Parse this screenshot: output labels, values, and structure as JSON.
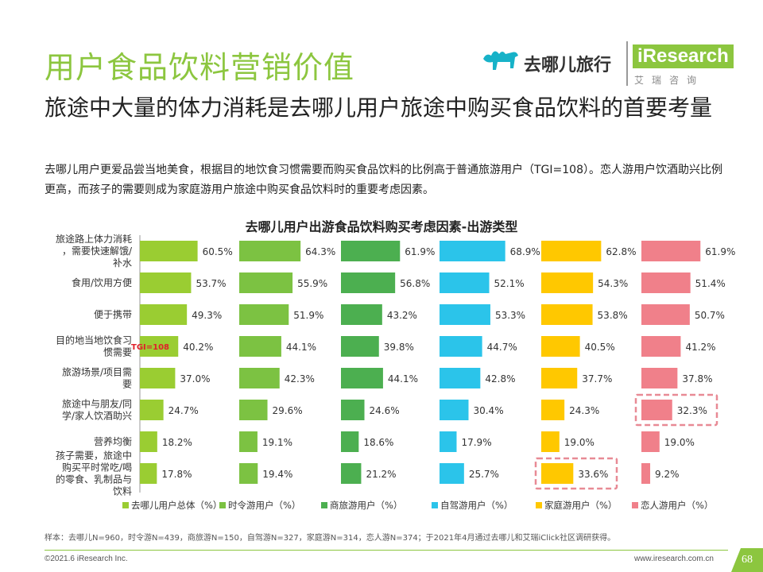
{
  "header": {
    "title": "用户食品饮料营销价值",
    "subtitle": "旅途中大量的体力消耗是去哪儿用户旅途中购买食品饮料的首要考量",
    "description": "去哪儿用户更爱品尝当地美食，根据目的地饮食习惯需要而购买食品饮料的比例高于普通旅游用户（TGI=108）。恋人游用户饮酒助兴比例更高，而孩子的需要则成为家庭游用户旅途中购买食品饮料时的重要考虑因素。",
    "qunar_logo_text": "去哪儿旅行",
    "ir_logo_text": "iResearch",
    "ir_logo_cn": "艾瑞咨询"
  },
  "footer": {
    "footnote": "样本：去哪儿N=960，时令游N=439，商旅游N=150，自驾游N=327，家庭游N=314，恋人游N=374；于2021年4月通过去哪儿和艾瑞iClick社区调研获得。",
    "copyright": "©2021.6 iResearch Inc.",
    "website": "www.iresearch.com.cn",
    "page_number": "68"
  },
  "chart_data": {
    "type": "bar",
    "title": "去哪儿用户出游食品饮料购买考虑因素-出游类型",
    "categories": [
      "旅途路上体力消耗，需要快速解饿/补水",
      "食用/饮用方便",
      "便于携带",
      "目的地当地饮食习惯需要",
      "旅游场景/项目需要",
      "旅途中与朋友/同学/家人饮酒助兴",
      "营养均衡",
      "孩子需要，旅途中购买平时常吃/喝的零食、乳制品与饮料"
    ],
    "series": [
      {
        "name": "去哪儿用户总体（%）",
        "color": "#9acd32",
        "values": [
          60.5,
          53.7,
          49.3,
          40.2,
          37.0,
          24.7,
          18.2,
          17.8
        ],
        "labels": [
          "60.5%",
          "53.7%",
          "49.3%",
          "40.2%",
          "37.0%",
          "24.7%",
          "18.2%",
          "17.8%"
        ]
      },
      {
        "name": "时令游用户（%）",
        "color": "#7cc242",
        "values": [
          64.3,
          55.9,
          51.9,
          44.1,
          42.3,
          29.6,
          19.1,
          19.4
        ],
        "labels": [
          "64.3%",
          "55.9%",
          "51.9%",
          "44.1%",
          "42.3%",
          "29.6%",
          "19.1%",
          "19.4%"
        ]
      },
      {
        "name": "商旅游用户（%）",
        "color": "#4caf50",
        "values": [
          61.9,
          56.8,
          43.2,
          39.8,
          44.1,
          24.6,
          18.6,
          21.2
        ],
        "labels": [
          "61.9%",
          "56.8%",
          "43.2%",
          "39.8%",
          "44.1%",
          "24.6%",
          "18.6%",
          "21.2%"
        ]
      },
      {
        "name": "自驾游用户（%）",
        "color": "#2bc4ea",
        "values": [
          68.9,
          52.1,
          53.3,
          44.7,
          42.8,
          30.4,
          17.9,
          25.7
        ],
        "labels": [
          "68.9%",
          "52.1%",
          "53.3%",
          "44.7%",
          "42.8%",
          "30.4%",
          "17.9%",
          "25.7%"
        ]
      },
      {
        "name": "家庭游用户（%）",
        "color": "#ffc800",
        "values": [
          62.8,
          54.3,
          53.8,
          40.5,
          37.7,
          24.3,
          19.0,
          33.6
        ],
        "labels": [
          "62.8%",
          "54.3%",
          "53.8%",
          "40.5%",
          "37.7%",
          "24.3%",
          "19.0%",
          "33.6%"
        ]
      },
      {
        "name": "恋人游用户（%）",
        "color": "#f0808a",
        "values": [
          61.9,
          51.4,
          50.7,
          41.2,
          37.8,
          32.3,
          19.0,
          9.2
        ],
        "labels": [
          "61.9%",
          "51.4%",
          "50.7%",
          "41.2%",
          "37.8%",
          "32.3%",
          "19.0%",
          "9.2%"
        ]
      }
    ],
    "annotations": [
      {
        "text": "TGI=108",
        "series": 0,
        "category": 3,
        "color": "#e0202a"
      }
    ],
    "highlights": [
      {
        "series": 5,
        "category": 5,
        "style": "dashed",
        "color": "#e88a95"
      },
      {
        "series": 4,
        "category": 7,
        "style": "dashed",
        "color": "#e88a95"
      }
    ],
    "legend_position": "bottom",
    "max_value": 70
  }
}
